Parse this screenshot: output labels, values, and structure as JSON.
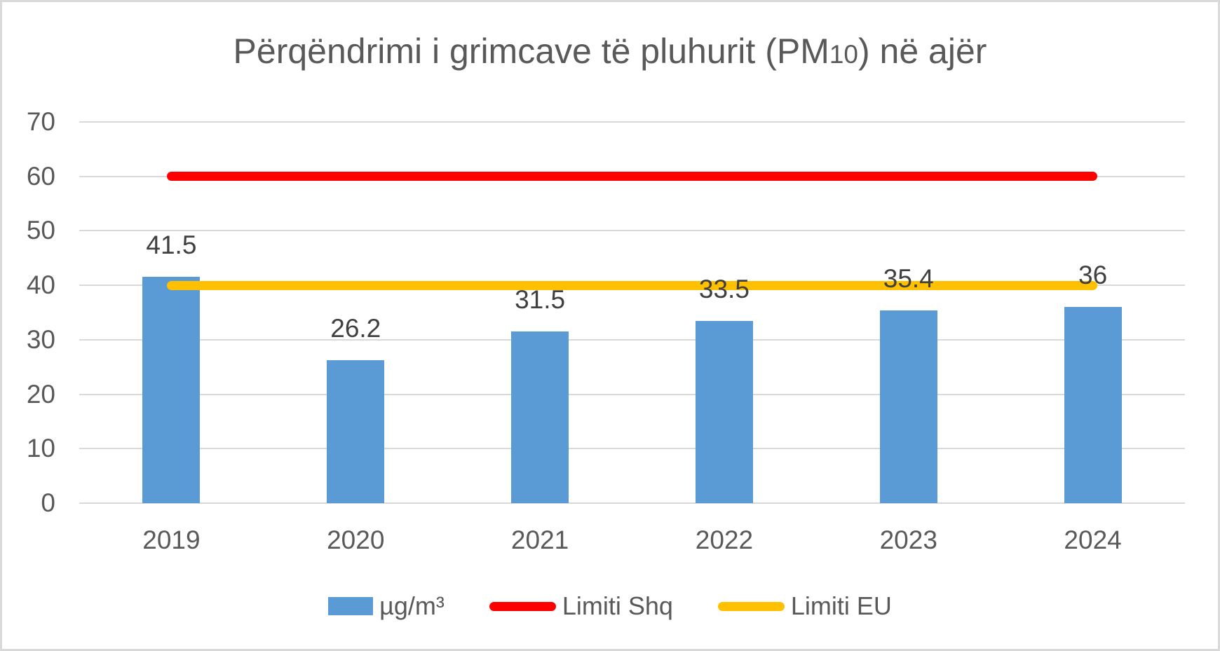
{
  "chart": {
    "background": "#FFFFFF",
    "border_color": "#D9D9D9",
    "gridline_color": "#D9D9D9",
    "axis_text_color": "#595959",
    "data_label_color": "#404040"
  },
  "chart_data": {
    "type": "bar",
    "title": "Përqëndrimi i grimcave të pluhurit (PM10) në ajër",
    "title_parts": {
      "prefix": "Përqëndrimi i grimcave të pluhurit (PM",
      "small": "10",
      "suffix": ") në ajër"
    },
    "categories": [
      "2019",
      "2020",
      "2021",
      "2022",
      "2023",
      "2024"
    ],
    "series": [
      {
        "name": "µg/m³",
        "kind": "bar",
        "color": "#5B9BD5",
        "values": [
          41.5,
          26.2,
          31.5,
          33.5,
          35.4,
          36
        ],
        "data_labels": [
          "41.5",
          "26.2",
          "31.5",
          "33.5",
          "35.4",
          "36"
        ]
      },
      {
        "name": "Limiti Shq",
        "kind": "line",
        "color": "#FF0000",
        "value": 60
      },
      {
        "name": "Limiti EU",
        "kind": "line",
        "color": "#FFC000",
        "value": 40
      }
    ],
    "xlabel": "",
    "ylabel": "",
    "ylim": [
      0,
      70
    ],
    "ytick_values": [
      0,
      10,
      20,
      30,
      40,
      50,
      60,
      70
    ],
    "ytick_labels": [
      "0",
      "10",
      "20",
      "30",
      "40",
      "50",
      "60",
      "70"
    ],
    "grid": true,
    "legend_position": "bottom"
  }
}
